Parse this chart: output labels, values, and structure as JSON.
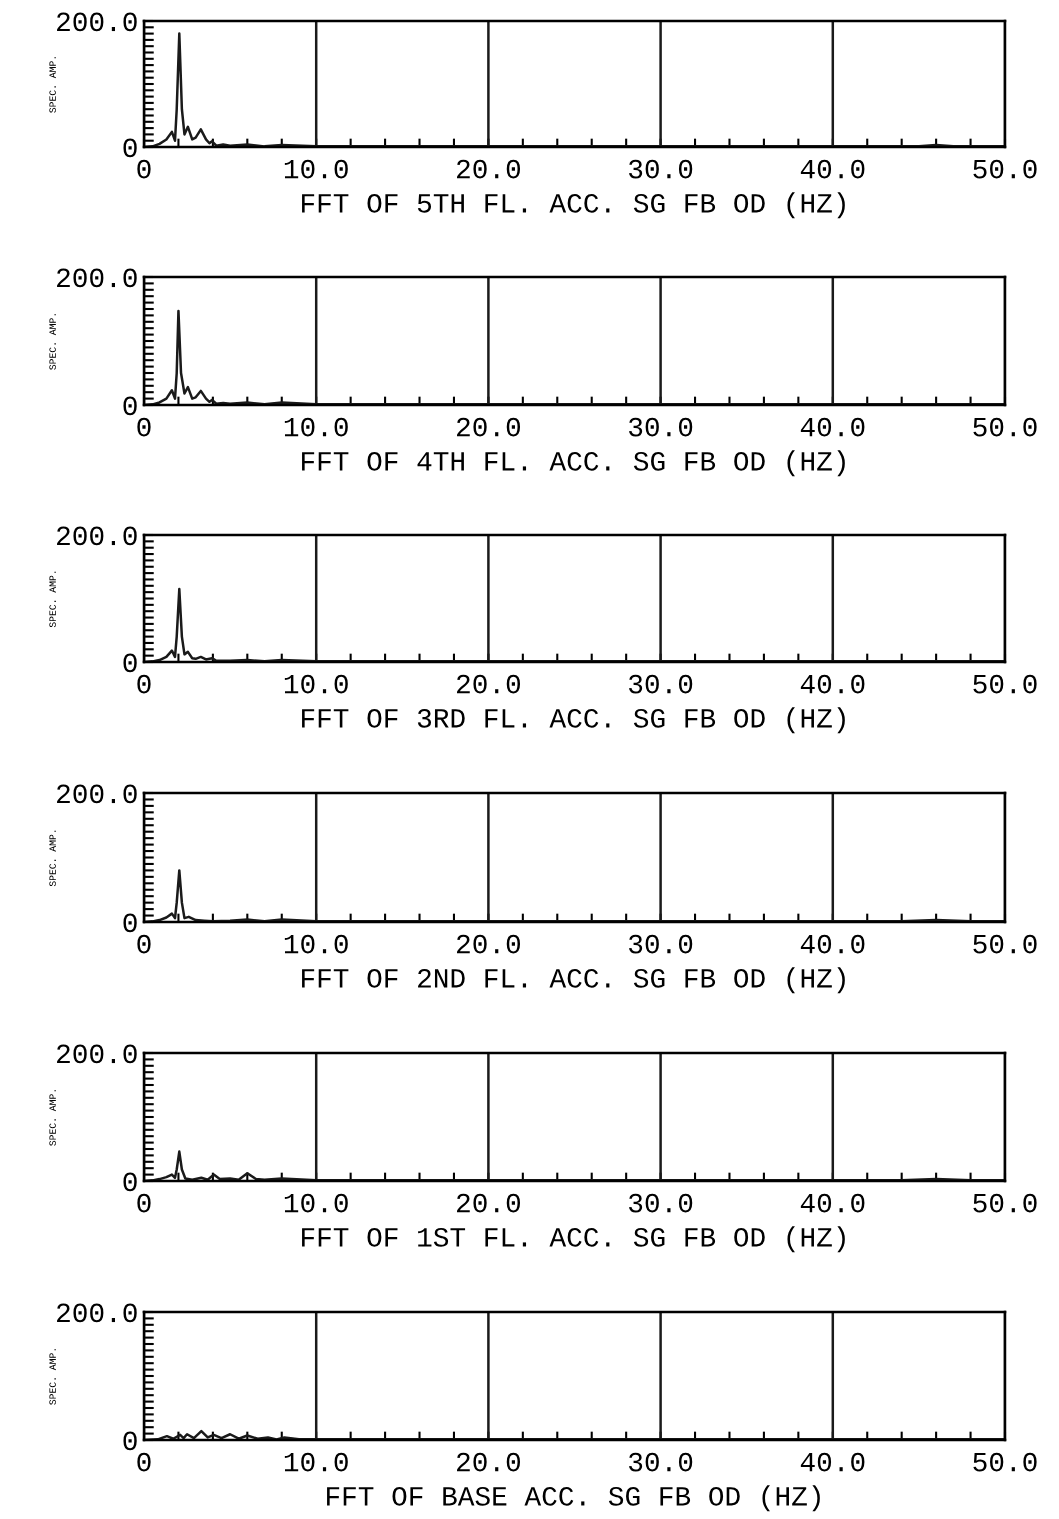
{
  "chart_data": [
    {
      "type": "line",
      "xlabel": "FFT OF 5TH FL. ACC. SG FB OD (HZ)",
      "ylabel": "SPEC. AMP.",
      "xlim": [
        0,
        50
      ],
      "ylim": [
        0,
        200
      ],
      "xticks": [
        {
          "value": 0,
          "label": "0"
        },
        {
          "value": 2,
          "label": null
        },
        {
          "value": 4,
          "label": null
        },
        {
          "value": 6,
          "label": null
        },
        {
          "value": 8,
          "label": null
        },
        {
          "value": 10,
          "label": "10.0"
        },
        {
          "value": 12,
          "label": null
        },
        {
          "value": 14,
          "label": null
        },
        {
          "value": 16,
          "label": null
        },
        {
          "value": 18,
          "label": null
        },
        {
          "value": 20,
          "label": "20.0"
        },
        {
          "value": 22,
          "label": null
        },
        {
          "value": 24,
          "label": null
        },
        {
          "value": 26,
          "label": null
        },
        {
          "value": 28,
          "label": null
        },
        {
          "value": 30,
          "label": "30.0"
        },
        {
          "value": 32,
          "label": null
        },
        {
          "value": 34,
          "label": null
        },
        {
          "value": 36,
          "label": null
        },
        {
          "value": 38,
          "label": null
        },
        {
          "value": 40,
          "label": "40.0"
        },
        {
          "value": 42,
          "label": null
        },
        {
          "value": 44,
          "label": null
        },
        {
          "value": 46,
          "label": null
        },
        {
          "value": 48,
          "label": null
        },
        {
          "value": 50,
          "label": "50.0"
        }
      ],
      "yticks": [
        {
          "value": 0,
          "label": "0"
        },
        {
          "value": 10,
          "label": null
        },
        {
          "value": 20,
          "label": null
        },
        {
          "value": 30,
          "label": null
        },
        {
          "value": 40,
          "label": null
        },
        {
          "value": 50,
          "label": null
        },
        {
          "value": 60,
          "label": null
        },
        {
          "value": 70,
          "label": null
        },
        {
          "value": 80,
          "label": null
        },
        {
          "value": 90,
          "label": null
        },
        {
          "value": 100,
          "label": null
        },
        {
          "value": 110,
          "label": null
        },
        {
          "value": 120,
          "label": null
        },
        {
          "value": 130,
          "label": null
        },
        {
          "value": 140,
          "label": null
        },
        {
          "value": 150,
          "label": null
        },
        {
          "value": 160,
          "label": null
        },
        {
          "value": 170,
          "label": null
        },
        {
          "value": 180,
          "label": null
        },
        {
          "value": 190,
          "label": null
        },
        {
          "value": 200,
          "label": "200.0"
        }
      ],
      "grid": "x",
      "series": [
        {
          "color": "#1a1a1a",
          "x": [
            0,
            0.5,
            0.9,
            1.3,
            1.62,
            1.8,
            1.9,
            2.05,
            2.2,
            2.35,
            2.55,
            2.8,
            3.0,
            3.3,
            3.6,
            3.8,
            3.95,
            4.2,
            4.6,
            5.0,
            6.0,
            7.0,
            8.0,
            10.0,
            15.0,
            20.0,
            30.0,
            40.0,
            45.0,
            46.0,
            47.0,
            50.0
          ],
          "values": [
            0,
            1,
            5,
            12,
            24,
            10,
            60,
            180,
            60,
            20,
            32,
            12,
            15,
            28,
            12,
            6,
            9,
            2,
            4,
            2,
            4,
            1,
            3,
            1,
            1,
            1,
            1,
            1,
            1,
            3,
            1,
            1
          ]
        }
      ]
    },
    {
      "type": "line",
      "xlabel": "FFT OF 4TH FL. ACC. SG FB OD (HZ)",
      "ylabel": "SPEC. AMP.",
      "xlim": [
        0,
        50
      ],
      "ylim": [
        0,
        200
      ],
      "xticks": [
        {
          "value": 0,
          "label": "0"
        },
        {
          "value": 2,
          "label": null
        },
        {
          "value": 4,
          "label": null
        },
        {
          "value": 6,
          "label": null
        },
        {
          "value": 8,
          "label": null
        },
        {
          "value": 10,
          "label": "10.0"
        },
        {
          "value": 12,
          "label": null
        },
        {
          "value": 14,
          "label": null
        },
        {
          "value": 16,
          "label": null
        },
        {
          "value": 18,
          "label": null
        },
        {
          "value": 20,
          "label": "20.0"
        },
        {
          "value": 22,
          "label": null
        },
        {
          "value": 24,
          "label": null
        },
        {
          "value": 26,
          "label": null
        },
        {
          "value": 28,
          "label": null
        },
        {
          "value": 30,
          "label": "30.0"
        },
        {
          "value": 32,
          "label": null
        },
        {
          "value": 34,
          "label": null
        },
        {
          "value": 36,
          "label": null
        },
        {
          "value": 38,
          "label": null
        },
        {
          "value": 40,
          "label": "40.0"
        },
        {
          "value": 42,
          "label": null
        },
        {
          "value": 44,
          "label": null
        },
        {
          "value": 46,
          "label": null
        },
        {
          "value": 48,
          "label": null
        },
        {
          "value": 50,
          "label": "50.0"
        }
      ],
      "yticks": [
        {
          "value": 0,
          "label": "0"
        },
        {
          "value": 10,
          "label": null
        },
        {
          "value": 20,
          "label": null
        },
        {
          "value": 30,
          "label": null
        },
        {
          "value": 40,
          "label": null
        },
        {
          "value": 50,
          "label": null
        },
        {
          "value": 60,
          "label": null
        },
        {
          "value": 70,
          "label": null
        },
        {
          "value": 80,
          "label": null
        },
        {
          "value": 90,
          "label": null
        },
        {
          "value": 100,
          "label": null
        },
        {
          "value": 110,
          "label": null
        },
        {
          "value": 120,
          "label": null
        },
        {
          "value": 130,
          "label": null
        },
        {
          "value": 140,
          "label": null
        },
        {
          "value": 150,
          "label": null
        },
        {
          "value": 160,
          "label": null
        },
        {
          "value": 170,
          "label": null
        },
        {
          "value": 180,
          "label": null
        },
        {
          "value": 190,
          "label": null
        },
        {
          "value": 200,
          "label": "200.0"
        }
      ],
      "grid": "x",
      "series": [
        {
          "color": "#1a1a1a",
          "x": [
            0,
            0.5,
            0.9,
            1.3,
            1.62,
            1.8,
            1.9,
            2.0,
            2.15,
            2.35,
            2.55,
            2.8,
            3.0,
            3.3,
            3.6,
            3.8,
            3.95,
            4.2,
            4.6,
            5.0,
            6.0,
            7.0,
            8.0,
            10.0,
            20.0,
            30.0,
            40.0,
            50.0
          ],
          "values": [
            0,
            1,
            4,
            10,
            23,
            10,
            50,
            147,
            50,
            18,
            28,
            10,
            12,
            22,
            10,
            5,
            8,
            2,
            3,
            2,
            4,
            1,
            4,
            1,
            1,
            1,
            1,
            1
          ]
        }
      ]
    },
    {
      "type": "line",
      "xlabel": "FFT OF 3RD FL. ACC. SG FB OD (HZ)",
      "ylabel": "SPEC. AMP.",
      "xlim": [
        0,
        50
      ],
      "ylim": [
        0,
        200
      ],
      "xticks": [
        {
          "value": 0,
          "label": "0"
        },
        {
          "value": 2,
          "label": null
        },
        {
          "value": 4,
          "label": null
        },
        {
          "value": 6,
          "label": null
        },
        {
          "value": 8,
          "label": null
        },
        {
          "value": 10,
          "label": "10.0"
        },
        {
          "value": 12,
          "label": null
        },
        {
          "value": 14,
          "label": null
        },
        {
          "value": 16,
          "label": null
        },
        {
          "value": 18,
          "label": null
        },
        {
          "value": 20,
          "label": "20.0"
        },
        {
          "value": 22,
          "label": null
        },
        {
          "value": 24,
          "label": null
        },
        {
          "value": 26,
          "label": null
        },
        {
          "value": 28,
          "label": null
        },
        {
          "value": 30,
          "label": "30.0"
        },
        {
          "value": 32,
          "label": null
        },
        {
          "value": 34,
          "label": null
        },
        {
          "value": 36,
          "label": null
        },
        {
          "value": 38,
          "label": null
        },
        {
          "value": 40,
          "label": "40.0"
        },
        {
          "value": 42,
          "label": null
        },
        {
          "value": 44,
          "label": null
        },
        {
          "value": 46,
          "label": null
        },
        {
          "value": 48,
          "label": null
        },
        {
          "value": 50,
          "label": "50.0"
        }
      ],
      "yticks": [
        {
          "value": 0,
          "label": "0"
        },
        {
          "value": 10,
          "label": null
        },
        {
          "value": 20,
          "label": null
        },
        {
          "value": 30,
          "label": null
        },
        {
          "value": 40,
          "label": null
        },
        {
          "value": 50,
          "label": null
        },
        {
          "value": 60,
          "label": null
        },
        {
          "value": 70,
          "label": null
        },
        {
          "value": 80,
          "label": null
        },
        {
          "value": 90,
          "label": null
        },
        {
          "value": 100,
          "label": null
        },
        {
          "value": 110,
          "label": null
        },
        {
          "value": 120,
          "label": null
        },
        {
          "value": 130,
          "label": null
        },
        {
          "value": 140,
          "label": null
        },
        {
          "value": 150,
          "label": null
        },
        {
          "value": 160,
          "label": null
        },
        {
          "value": 170,
          "label": null
        },
        {
          "value": 180,
          "label": null
        },
        {
          "value": 190,
          "label": null
        },
        {
          "value": 200,
          "label": "200.0"
        }
      ],
      "grid": "x",
      "series": [
        {
          "color": "#1a1a1a",
          "x": [
            0,
            0.5,
            0.9,
            1.3,
            1.62,
            1.8,
            1.9,
            2.05,
            2.2,
            2.35,
            2.55,
            2.8,
            3.0,
            3.3,
            3.6,
            3.95,
            4.2,
            5.0,
            6.0,
            7.0,
            8.0,
            10.0,
            20.0,
            30.0,
            40.0,
            50.0
          ],
          "values": [
            0,
            1,
            3,
            8,
            18,
            8,
            40,
            115,
            40,
            12,
            16,
            6,
            5,
            8,
            4,
            6,
            2,
            2,
            3,
            1,
            3,
            1,
            1,
            1,
            1,
            1
          ]
        }
      ]
    },
    {
      "type": "line",
      "xlabel": "FFT OF 2ND FL. ACC. SG FB OD (HZ)",
      "ylabel": "SPEC. AMP.",
      "xlim": [
        0,
        50
      ],
      "ylim": [
        0,
        200
      ],
      "xticks": [
        {
          "value": 0,
          "label": "0"
        },
        {
          "value": 2,
          "label": null
        },
        {
          "value": 4,
          "label": null
        },
        {
          "value": 6,
          "label": null
        },
        {
          "value": 8,
          "label": null
        },
        {
          "value": 10,
          "label": "10.0"
        },
        {
          "value": 12,
          "label": null
        },
        {
          "value": 14,
          "label": null
        },
        {
          "value": 16,
          "label": null
        },
        {
          "value": 18,
          "label": null
        },
        {
          "value": 20,
          "label": "20.0"
        },
        {
          "value": 22,
          "label": null
        },
        {
          "value": 24,
          "label": null
        },
        {
          "value": 26,
          "label": null
        },
        {
          "value": 28,
          "label": null
        },
        {
          "value": 30,
          "label": "30.0"
        },
        {
          "value": 32,
          "label": null
        },
        {
          "value": 34,
          "label": null
        },
        {
          "value": 36,
          "label": null
        },
        {
          "value": 38,
          "label": null
        },
        {
          "value": 40,
          "label": "40.0"
        },
        {
          "value": 42,
          "label": null
        },
        {
          "value": 44,
          "label": null
        },
        {
          "value": 46,
          "label": null
        },
        {
          "value": 48,
          "label": null
        },
        {
          "value": 50,
          "label": "50.0"
        }
      ],
      "yticks": [
        {
          "value": 0,
          "label": "0"
        },
        {
          "value": 10,
          "label": null
        },
        {
          "value": 20,
          "label": null
        },
        {
          "value": 30,
          "label": null
        },
        {
          "value": 40,
          "label": null
        },
        {
          "value": 50,
          "label": null
        },
        {
          "value": 60,
          "label": null
        },
        {
          "value": 70,
          "label": null
        },
        {
          "value": 80,
          "label": null
        },
        {
          "value": 90,
          "label": null
        },
        {
          "value": 100,
          "label": null
        },
        {
          "value": 110,
          "label": null
        },
        {
          "value": 120,
          "label": null
        },
        {
          "value": 130,
          "label": null
        },
        {
          "value": 140,
          "label": null
        },
        {
          "value": 150,
          "label": null
        },
        {
          "value": 160,
          "label": null
        },
        {
          "value": 170,
          "label": null
        },
        {
          "value": 180,
          "label": null
        },
        {
          "value": 190,
          "label": null
        },
        {
          "value": 200,
          "label": "200.0"
        }
      ],
      "grid": "x",
      "series": [
        {
          "color": "#1a1a1a",
          "x": [
            0,
            0.5,
            0.9,
            1.3,
            1.62,
            1.8,
            1.9,
            2.05,
            2.2,
            2.35,
            2.6,
            3.0,
            3.5,
            4.0,
            5.0,
            6.0,
            7.0,
            8.0,
            10.0,
            20.0,
            30.0,
            40.0,
            44.0,
            46.0,
            48.0,
            50.0
          ],
          "values": [
            0,
            1,
            3,
            7,
            13,
            6,
            30,
            80,
            30,
            6,
            8,
            3,
            2,
            1,
            2,
            4,
            1,
            4,
            1,
            1,
            1,
            1,
            1,
            3,
            1,
            1
          ]
        }
      ]
    },
    {
      "type": "line",
      "xlabel": "FFT OF 1ST FL. ACC. SG FB OD (HZ)",
      "ylabel": "SPEC. AMP.",
      "xlim": [
        0,
        50
      ],
      "ylim": [
        0,
        200
      ],
      "xticks": [
        {
          "value": 0,
          "label": "0"
        },
        {
          "value": 2,
          "label": null
        },
        {
          "value": 4,
          "label": null
        },
        {
          "value": 6,
          "label": null
        },
        {
          "value": 8,
          "label": null
        },
        {
          "value": 10,
          "label": "10.0"
        },
        {
          "value": 12,
          "label": null
        },
        {
          "value": 14,
          "label": null
        },
        {
          "value": 16,
          "label": null
        },
        {
          "value": 18,
          "label": null
        },
        {
          "value": 20,
          "label": "20.0"
        },
        {
          "value": 22,
          "label": null
        },
        {
          "value": 24,
          "label": null
        },
        {
          "value": 26,
          "label": null
        },
        {
          "value": 28,
          "label": null
        },
        {
          "value": 30,
          "label": "30.0"
        },
        {
          "value": 32,
          "label": null
        },
        {
          "value": 34,
          "label": null
        },
        {
          "value": 36,
          "label": null
        },
        {
          "value": 38,
          "label": null
        },
        {
          "value": 40,
          "label": "40.0"
        },
        {
          "value": 42,
          "label": null
        },
        {
          "value": 44,
          "label": null
        },
        {
          "value": 46,
          "label": null
        },
        {
          "value": 48,
          "label": null
        },
        {
          "value": 50,
          "label": "50.0"
        }
      ],
      "yticks": [
        {
          "value": 0,
          "label": "0"
        },
        {
          "value": 10,
          "label": null
        },
        {
          "value": 20,
          "label": null
        },
        {
          "value": 30,
          "label": null
        },
        {
          "value": 40,
          "label": null
        },
        {
          "value": 50,
          "label": null
        },
        {
          "value": 60,
          "label": null
        },
        {
          "value": 70,
          "label": null
        },
        {
          "value": 80,
          "label": null
        },
        {
          "value": 90,
          "label": null
        },
        {
          "value": 100,
          "label": null
        },
        {
          "value": 110,
          "label": null
        },
        {
          "value": 120,
          "label": null
        },
        {
          "value": 130,
          "label": null
        },
        {
          "value": 140,
          "label": null
        },
        {
          "value": 150,
          "label": null
        },
        {
          "value": 160,
          "label": null
        },
        {
          "value": 170,
          "label": null
        },
        {
          "value": 180,
          "label": null
        },
        {
          "value": 190,
          "label": null
        },
        {
          "value": 200,
          "label": "200.0"
        }
      ],
      "grid": "x",
      "series": [
        {
          "color": "#1a1a1a",
          "x": [
            0,
            0.5,
            0.9,
            1.3,
            1.62,
            1.8,
            1.9,
            2.05,
            2.2,
            2.4,
            2.8,
            3.33,
            3.7,
            4.05,
            4.4,
            5.0,
            5.5,
            6.0,
            6.5,
            7.0,
            8.0,
            10.0,
            20.0,
            30.0,
            40.0,
            44.0,
            46.0,
            48.0,
            50.0
          ],
          "values": [
            0,
            1,
            3,
            6,
            10,
            5,
            18,
            46,
            18,
            4,
            2,
            5,
            2,
            10,
            3,
            4,
            2,
            12,
            3,
            2,
            4,
            1,
            1,
            1,
            1,
            1,
            3,
            1,
            1
          ]
        }
      ]
    },
    {
      "type": "line",
      "xlabel": "FFT OF BASE ACC. SG FB OD (HZ)",
      "ylabel": "SPEC. AMP.",
      "xlim": [
        0,
        50
      ],
      "ylim": [
        0,
        200
      ],
      "xticks": [
        {
          "value": 0,
          "label": "0"
        },
        {
          "value": 2,
          "label": null
        },
        {
          "value": 4,
          "label": null
        },
        {
          "value": 6,
          "label": null
        },
        {
          "value": 8,
          "label": null
        },
        {
          "value": 10,
          "label": "10.0"
        },
        {
          "value": 12,
          "label": null
        },
        {
          "value": 14,
          "label": null
        },
        {
          "value": 16,
          "label": null
        },
        {
          "value": 18,
          "label": null
        },
        {
          "value": 20,
          "label": "20.0"
        },
        {
          "value": 22,
          "label": null
        },
        {
          "value": 24,
          "label": null
        },
        {
          "value": 26,
          "label": null
        },
        {
          "value": 28,
          "label": null
        },
        {
          "value": 30,
          "label": "30.0"
        },
        {
          "value": 32,
          "label": null
        },
        {
          "value": 34,
          "label": null
        },
        {
          "value": 36,
          "label": null
        },
        {
          "value": 38,
          "label": null
        },
        {
          "value": 40,
          "label": "40.0"
        },
        {
          "value": 42,
          "label": null
        },
        {
          "value": 44,
          "label": null
        },
        {
          "value": 46,
          "label": null
        },
        {
          "value": 48,
          "label": null
        },
        {
          "value": 50,
          "label": "50.0"
        }
      ],
      "yticks": [
        {
          "value": 0,
          "label": "0"
        },
        {
          "value": 10,
          "label": null
        },
        {
          "value": 20,
          "label": null
        },
        {
          "value": 30,
          "label": null
        },
        {
          "value": 40,
          "label": null
        },
        {
          "value": 50,
          "label": null
        },
        {
          "value": 60,
          "label": null
        },
        {
          "value": 70,
          "label": null
        },
        {
          "value": 80,
          "label": null
        },
        {
          "value": 90,
          "label": null
        },
        {
          "value": 100,
          "label": null
        },
        {
          "value": 110,
          "label": null
        },
        {
          "value": 120,
          "label": null
        },
        {
          "value": 130,
          "label": null
        },
        {
          "value": 140,
          "label": null
        },
        {
          "value": 150,
          "label": null
        },
        {
          "value": 160,
          "label": null
        },
        {
          "value": 170,
          "label": null
        },
        {
          "value": 180,
          "label": null
        },
        {
          "value": 190,
          "label": null
        },
        {
          "value": 200,
          "label": "200.0"
        }
      ],
      "grid": "x",
      "series": [
        {
          "color": "#1a1a1a",
          "x": [
            0,
            0.8,
            1.33,
            1.7,
            2.1,
            2.3,
            2.5,
            2.9,
            3.33,
            3.7,
            4.05,
            4.5,
            5.0,
            5.5,
            6.0,
            6.6,
            7.2,
            7.7,
            8.15,
            9.0,
            10.0,
            15.0,
            20.0,
            30.0,
            40.0,
            50.0
          ],
          "values": [
            0,
            1,
            6,
            2,
            8,
            3,
            9,
            3,
            14,
            4,
            8,
            3,
            9,
            2,
            7,
            2,
            4,
            1,
            4,
            1,
            1,
            1,
            1,
            1,
            1,
            1
          ]
        }
      ]
    }
  ]
}
